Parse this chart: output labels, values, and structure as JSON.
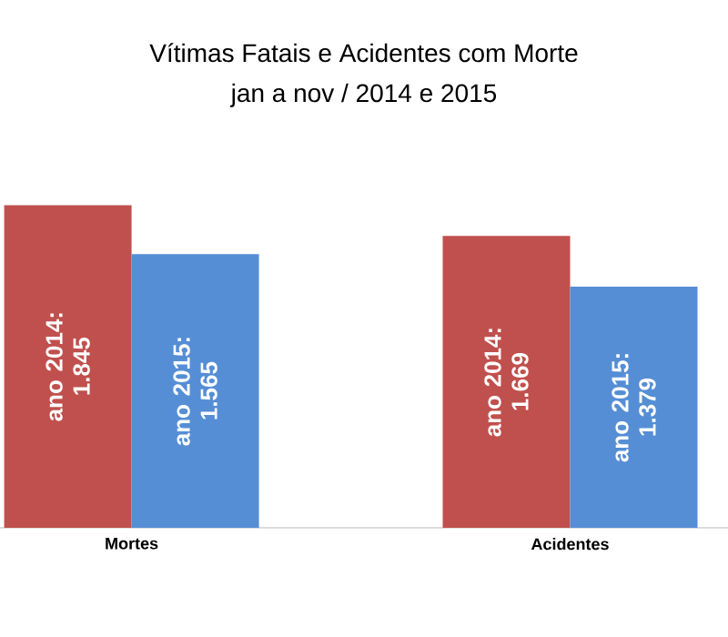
{
  "chart_data": {
    "type": "bar",
    "title": "Vítimas Fatais e Acidentes com Morte",
    "subtitle": "jan a nov / 2014 e 2015",
    "categories": [
      "Mortes",
      "Acidentes"
    ],
    "series": [
      {
        "color": "#c0504d",
        "values": [
          1845,
          1669
        ],
        "value_labels": [
          "ano 2014: 1.845",
          "ano 2014: 1.669"
        ]
      },
      {
        "color": "#558ed5",
        "values": [
          1565,
          1379
        ],
        "value_labels": [
          "ano 2015: 1.565",
          "ano 2015: 1.379"
        ]
      }
    ]
  }
}
